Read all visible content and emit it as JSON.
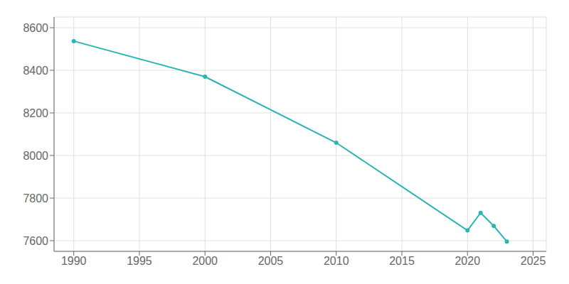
{
  "chart_data": {
    "type": "line",
    "x": [
      1990,
      2000,
      2010,
      2020,
      2021,
      2022,
      2023
    ],
    "values": [
      8537,
      8370,
      8060,
      7648,
      7731,
      7669,
      7596
    ],
    "color": "#2ab5b5",
    "marker": "circle",
    "xlim": [
      1988.5,
      2026
    ],
    "ylim": [
      7550,
      8650
    ],
    "xticks": [
      1990,
      1995,
      2000,
      2005,
      2010,
      2015,
      2020,
      2025
    ],
    "yticks": [
      7600,
      7800,
      8000,
      8200,
      8400,
      8600
    ],
    "grid": true
  }
}
